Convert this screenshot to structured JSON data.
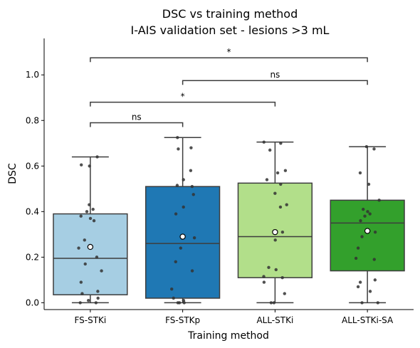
{
  "chart_data": {
    "type": "box",
    "title_line1": "DSC vs training method",
    "title_line2": "I-AIS validation set - lesions >3 mL",
    "xlabel": "Training method",
    "ylabel": "DSC",
    "ylim": [
      -0.03,
      1.16
    ],
    "yticks": [
      0.0,
      0.2,
      0.4,
      0.6,
      0.8,
      1.0
    ],
    "ytick_labels": [
      "0.0",
      "0.2",
      "0.4",
      "0.6",
      "0.8",
      "1.0"
    ],
    "categories": [
      "FS-STKi",
      "FS-STKp",
      "ALL-STKi",
      "ALL-STKi-SA"
    ],
    "colors": [
      "#a6cee3",
      "#1f78b4",
      "#b2df8a",
      "#33a02c"
    ],
    "boxes": [
      {
        "whisker_low": 0.0,
        "q1": 0.035,
        "median": 0.195,
        "q3": 0.39,
        "whisker_high": 0.64,
        "mean": 0.245,
        "points": [
          0.0,
          0.0,
          0.01,
          0.02,
          0.04,
          0.05,
          0.09,
          0.14,
          0.17,
          0.2,
          0.24,
          0.275,
          0.36,
          0.37,
          0.38,
          0.4,
          0.41,
          0.43,
          0.6,
          0.605,
          0.64
        ]
      },
      {
        "whisker_low": 0.0,
        "q1": 0.02,
        "median": 0.26,
        "q3": 0.51,
        "whisker_high": 0.725,
        "mean": 0.29,
        "points": [
          0.0,
          0.0,
          0.0,
          0.01,
          0.02,
          0.06,
          0.14,
          0.18,
          0.24,
          0.285,
          0.39,
          0.42,
          0.475,
          0.51,
          0.515,
          0.54,
          0.58,
          0.675,
          0.68,
          0.725
        ]
      },
      {
        "whisker_low": 0.0,
        "q1": 0.11,
        "median": 0.29,
        "q3": 0.525,
        "whisker_high": 0.705,
        "mean": 0.31,
        "points": [
          0.0,
          0.0,
          0.04,
          0.09,
          0.11,
          0.115,
          0.145,
          0.155,
          0.275,
          0.31,
          0.42,
          0.43,
          0.48,
          0.52,
          0.54,
          0.57,
          0.58,
          0.67,
          0.7,
          0.705
        ]
      },
      {
        "whisker_low": 0.0,
        "q1": 0.14,
        "median": 0.35,
        "q3": 0.45,
        "whisker_high": 0.685,
        "mean": 0.315,
        "points": [
          0.0,
          0.0,
          0.05,
          0.07,
          0.09,
          0.1,
          0.19,
          0.195,
          0.24,
          0.29,
          0.31,
          0.36,
          0.38,
          0.39,
          0.4,
          0.41,
          0.45,
          0.52,
          0.57,
          0.675,
          0.685
        ]
      }
    ],
    "significance": [
      {
        "from": 0,
        "to": 1,
        "level": 0.79,
        "label": "ns"
      },
      {
        "from": 0,
        "to": 2,
        "level": 0.88,
        "label": "*"
      },
      {
        "from": 1,
        "to": 3,
        "level": 0.975,
        "label": "ns"
      },
      {
        "from": 0,
        "to": 3,
        "level": 1.075,
        "label": "*"
      }
    ],
    "grid": false
  }
}
